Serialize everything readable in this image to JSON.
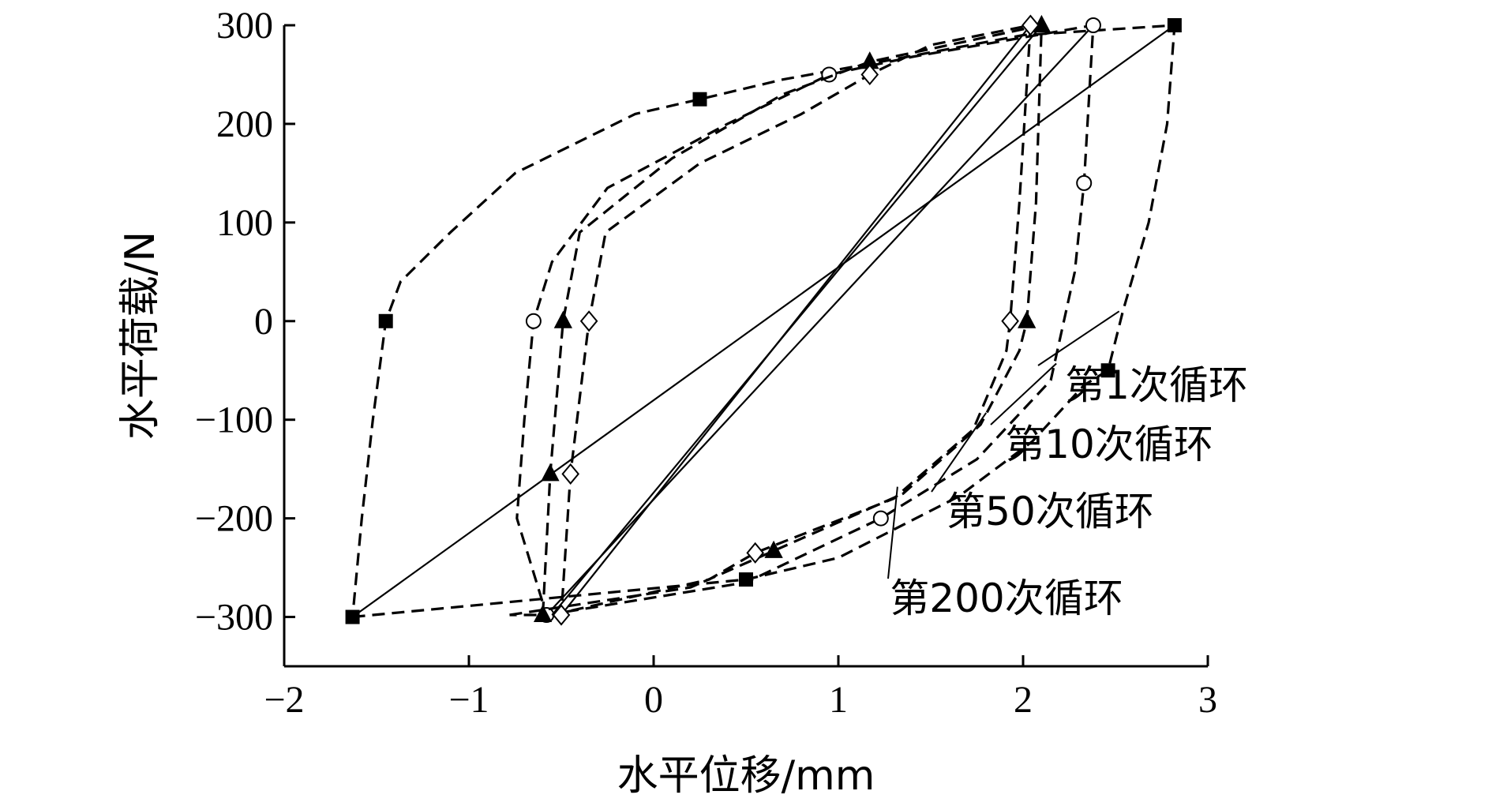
{
  "chart_data": {
    "type": "line",
    "title": "",
    "xlabel": "水平位移/mm",
    "ylabel": "水平荷载/N",
    "xlim": [
      -2,
      3
    ],
    "ylim": [
      -350,
      300
    ],
    "x_ticks": [
      "−2",
      "−1",
      "0",
      "1",
      "2",
      "3"
    ],
    "x_tick_values": [
      -2,
      -1,
      0,
      1,
      2,
      3
    ],
    "y_ticks": [
      "−300",
      "−200",
      "−100",
      "0",
      "100",
      "200",
      "300"
    ],
    "y_tick_values": [
      -300,
      -200,
      -100,
      0,
      100,
      200,
      300
    ],
    "grid": false,
    "legend": "none",
    "annotations": [
      {
        "text": "第1次循环",
        "series": "第1次循环",
        "target": [
          2.52,
          10
        ]
      },
      {
        "text": "第10次循环",
        "series": "第10次循环",
        "target": [
          2.18,
          -43
        ]
      },
      {
        "text": "第50次循环",
        "series": "第50次循环",
        "target": [
          1.8,
          -93
        ]
      },
      {
        "text": "第200次循环",
        "series": "第200次循环",
        "target": [
          1.32,
          -168
        ]
      }
    ],
    "series": [
      {
        "name": "第1次循环",
        "marker": "filled-square",
        "loop": [
          [
            -1.63,
            -300
          ],
          [
            0.5,
            -262
          ],
          [
            1.0,
            -240
          ],
          [
            1.65,
            -178
          ],
          [
            2.05,
            -122
          ],
          [
            2.33,
            -65
          ],
          [
            2.46,
            -50
          ],
          [
            2.54,
            10
          ],
          [
            2.68,
            100
          ],
          [
            2.78,
            200
          ],
          [
            2.82,
            300
          ],
          [
            2.0,
            290
          ],
          [
            1.2,
            262
          ],
          [
            0.7,
            245
          ],
          [
            0.25,
            225
          ],
          [
            -0.1,
            210
          ],
          [
            -0.75,
            150
          ],
          [
            -1.1,
            90
          ],
          [
            -1.37,
            40
          ],
          [
            -1.45,
            0
          ],
          [
            -1.52,
            -100
          ],
          [
            -1.58,
            -200
          ],
          [
            -1.63,
            -300
          ]
        ],
        "skeleton": [
          [
            -1.63,
            -300
          ],
          [
            2.82,
            300
          ]
        ],
        "markers": [
          [
            -1.63,
            -300
          ],
          [
            0.5,
            -262
          ],
          [
            2.46,
            -50
          ],
          [
            2.82,
            300
          ],
          [
            0.25,
            225
          ],
          [
            -1.45,
            0
          ]
        ]
      },
      {
        "name": "第10次循环",
        "marker": "open-circle",
        "loop": [
          [
            -0.58,
            -298
          ],
          [
            0.5,
            -265
          ],
          [
            1.23,
            -200
          ],
          [
            1.75,
            -140
          ],
          [
            2.15,
            -60
          ],
          [
            2.28,
            50
          ],
          [
            2.33,
            140
          ],
          [
            2.38,
            300
          ],
          [
            1.4,
            268
          ],
          [
            0.95,
            250
          ],
          [
            0.4,
            200
          ],
          [
            -0.25,
            135
          ],
          [
            -0.55,
            60
          ],
          [
            -0.65,
            0
          ],
          [
            -0.7,
            -100
          ],
          [
            -0.74,
            -200
          ],
          [
            -0.58,
            -298
          ]
        ],
        "skeleton": [
          [
            -0.58,
            -298
          ],
          [
            2.38,
            300
          ]
        ],
        "markers": [
          [
            -0.58,
            -298
          ],
          [
            1.23,
            -200
          ],
          [
            2.33,
            140
          ],
          [
            2.38,
            300
          ],
          [
            0.95,
            250
          ],
          [
            -0.65,
            0
          ]
        ]
      },
      {
        "name": "第50次循环",
        "marker": "filled-triangle",
        "loop": [
          [
            -0.78,
            -298
          ],
          [
            0.2,
            -270
          ],
          [
            0.65,
            -233
          ],
          [
            1.35,
            -175
          ],
          [
            1.77,
            -105
          ],
          [
            1.98,
            -30
          ],
          [
            2.02,
            0
          ],
          [
            2.07,
            120
          ],
          [
            2.1,
            300
          ],
          [
            1.6,
            280
          ],
          [
            1.17,
            263
          ],
          [
            0.7,
            230
          ],
          [
            0.1,
            165
          ],
          [
            -0.4,
            90
          ],
          [
            -0.49,
            0
          ],
          [
            -0.56,
            -155
          ],
          [
            -0.6,
            -298
          ],
          [
            -0.78,
            -298
          ]
        ],
        "skeleton": [
          [
            -0.55,
            -298
          ],
          [
            2.1,
            300
          ]
        ],
        "markers": [
          [
            -0.6,
            -298
          ],
          [
            0.65,
            -233
          ],
          [
            2.02,
            0
          ],
          [
            2.1,
            300
          ],
          [
            1.17,
            263
          ],
          [
            -0.49,
            0
          ],
          [
            -0.56,
            -155
          ]
        ]
      },
      {
        "name": "第200次循环",
        "marker": "open-diamond",
        "loop": [
          [
            -0.55,
            -298
          ],
          [
            0.3,
            -262
          ],
          [
            0.55,
            -235
          ],
          [
            1.3,
            -180
          ],
          [
            1.73,
            -110
          ],
          [
            1.91,
            -30
          ],
          [
            1.93,
            0
          ],
          [
            1.98,
            120
          ],
          [
            2.04,
            300
          ],
          [
            1.5,
            280
          ],
          [
            1.17,
            250
          ],
          [
            0.8,
            210
          ],
          [
            0.25,
            160
          ],
          [
            -0.26,
            90
          ],
          [
            -0.35,
            0
          ],
          [
            -0.45,
            -155
          ],
          [
            -0.5,
            -298
          ],
          [
            -0.55,
            -298
          ]
        ],
        "skeleton": [
          [
            -0.5,
            -298
          ],
          [
            2.04,
            300
          ]
        ],
        "markers": [
          [
            -0.5,
            -298
          ],
          [
            0.55,
            -235
          ],
          [
            1.93,
            0
          ],
          [
            2.04,
            300
          ],
          [
            1.17,
            250
          ],
          [
            -0.35,
            0
          ],
          [
            -0.45,
            -155
          ]
        ]
      }
    ]
  }
}
